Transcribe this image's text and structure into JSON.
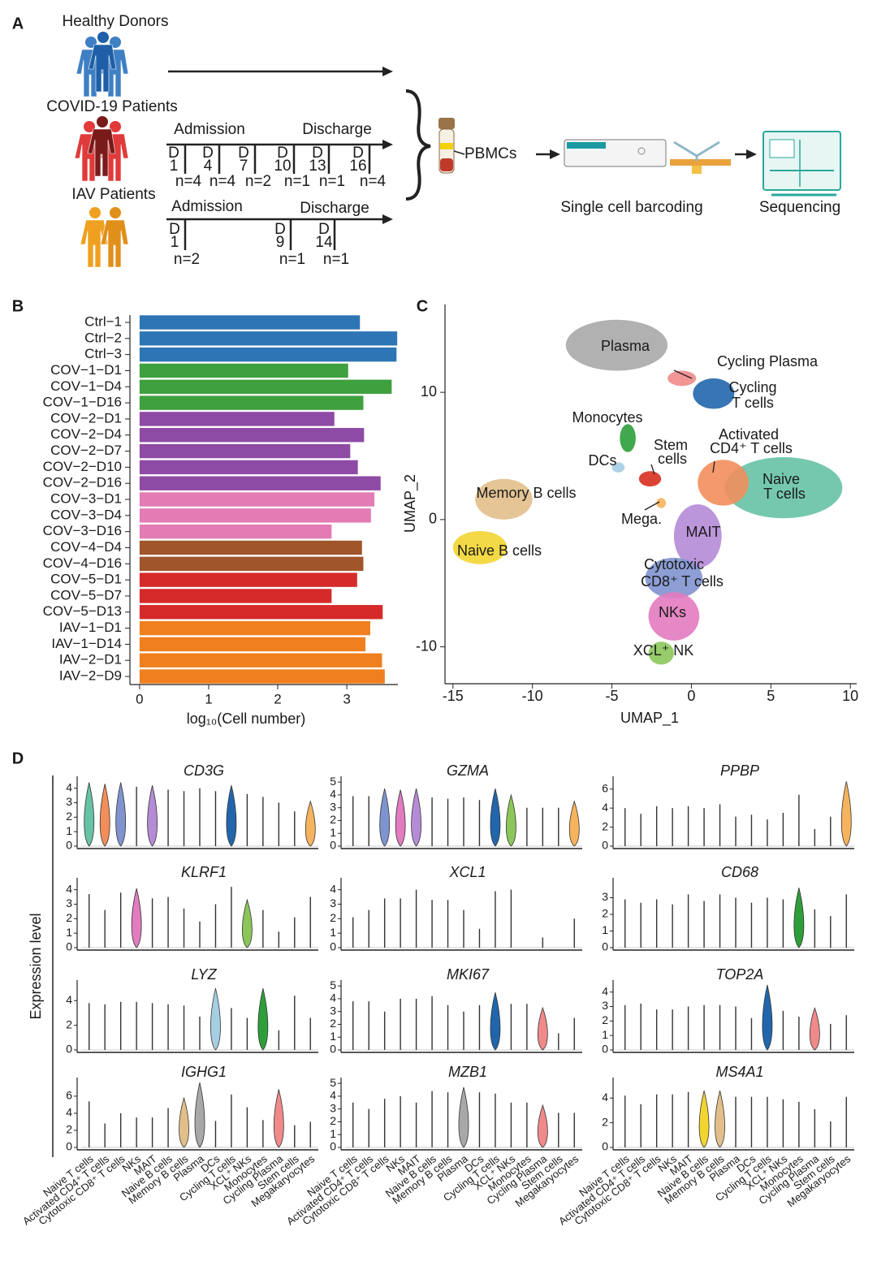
{
  "panel_labels": [
    "A",
    "B",
    "C",
    "D"
  ],
  "diagram": {
    "healthy": "Healthy Donors",
    "covid": "COVID-19 Patients",
    "iav": "IAV Patients",
    "admission": "Admission",
    "discharge": "Discharge",
    "day_prefix": "D",
    "covid_days": [
      {
        "day": 1,
        "n": "n=4"
      },
      {
        "day": 4,
        "n": "n=4"
      },
      {
        "day": 7,
        "n": "n=2"
      },
      {
        "day": 10,
        "n": "n=1"
      },
      {
        "day": 13,
        "n": "n=1"
      },
      {
        "day": 16,
        "n": "n=4"
      }
    ],
    "iav_days": [
      {
        "day": 1,
        "n": "n=2"
      },
      {
        "day": 9,
        "n": "n=1"
      },
      {
        "day": 14,
        "n": "n=1"
      }
    ],
    "pbmcs": "PBMCs",
    "barcoding": "Single cell barcoding",
    "sequencing": "Sequencing"
  },
  "chart_data": [
    {
      "type": "bar",
      "orientation": "horizontal",
      "categories": [
        "Ctrl−1",
        "Ctrl−2",
        "Ctrl−3",
        "COV−1−D1",
        "COV−1−D4",
        "COV−1−D16",
        "COV−2−D1",
        "COV−2−D4",
        "COV−2−D7",
        "COV−2−D10",
        "COV−2−D16",
        "COV−3−D1",
        "COV−3−D4",
        "COV−3−D16",
        "COV−4−D4",
        "COV−4−D16",
        "COV−5−D1",
        "COV−5−D7",
        "COV−5−D13",
        "IAV−1−D1",
        "IAV−1−D14",
        "IAV−2−D1",
        "IAV−2−D9"
      ],
      "values": [
        3.19,
        3.73,
        3.72,
        3.02,
        3.65,
        3.24,
        2.82,
        3.25,
        3.05,
        3.16,
        3.49,
        3.4,
        3.35,
        2.78,
        3.22,
        3.24,
        3.15,
        2.78,
        3.52,
        3.34,
        3.27,
        3.51,
        3.55
      ],
      "colors": [
        "#2e75b6",
        "#2e75b6",
        "#2e75b6",
        "#3ea03e",
        "#3ea03e",
        "#3ea03e",
        "#8e4ba5",
        "#8e4ba5",
        "#8e4ba5",
        "#8e4ba5",
        "#8e4ba5",
        "#e37cb4",
        "#e37cb4",
        "#e37cb4",
        "#a0552b",
        "#a0552b",
        "#d62a2a",
        "#d62a2a",
        "#d62a2a",
        "#f07f1e",
        "#f07f1e",
        "#f07f1e",
        "#f07f1e"
      ],
      "xlabel": "log₁₀(Cell number)",
      "xlim": [
        -0.14,
        3.74
      ],
      "xticks": [
        0,
        1,
        2,
        3
      ]
    },
    {
      "type": "scatter",
      "xlabel": "UMAP_1",
      "ylabel": "UMAP_2",
      "xlim": [
        -15.5,
        10.4
      ],
      "ylim": [
        -12.9,
        16.9
      ],
      "xticks": [
        -15,
        -10,
        -5,
        0,
        5,
        10
      ],
      "yticks": [
        -10,
        0,
        10
      ],
      "clusters": [
        {
          "label": [
            "Plasma"
          ],
          "color": "#a8a8a8",
          "x": -4.7,
          "y": 13.7,
          "rx": 3.2,
          "ry": 2.0
        },
        {
          "label": [
            "Cycling Plasma"
          ],
          "color": "#f08a8a",
          "x": -0.6,
          "y": 11.1,
          "rx": 0.9,
          "ry": 0.6
        },
        {
          "label": [
            "Cycling",
            "T cells"
          ],
          "color": "#2166ac",
          "x": 1.4,
          "y": 9.9,
          "rx": 1.3,
          "ry": 1.2
        },
        {
          "label": [
            "Monocytes"
          ],
          "color": "#2e9e3a",
          "x": -4.0,
          "y": 6.4,
          "rx": 0.5,
          "ry": 1.1
        },
        {
          "label": [
            "DCs"
          ],
          "color": "#a6cee3",
          "x": -4.6,
          "y": 4.1,
          "rx": 0.4,
          "ry": 0.4
        },
        {
          "label": [
            "Stem",
            "cells"
          ],
          "color": "#d7301f",
          "x": -2.6,
          "y": 3.2,
          "rx": 0.7,
          "ry": 0.6
        },
        {
          "label": [
            "Mega."
          ],
          "color": "#f6b35e",
          "x": -1.9,
          "y": 1.3,
          "rx": 0.3,
          "ry": 0.4
        },
        {
          "label": [
            "Memory B cells"
          ],
          "color": "#e2bf8a",
          "x": -11.8,
          "y": 1.6,
          "rx": 1.8,
          "ry": 1.6
        },
        {
          "label": [
            "Naive B cells"
          ],
          "color": "#f2d531",
          "x": -13.3,
          "y": -2.2,
          "rx": 1.7,
          "ry": 1.3
        },
        {
          "label": [
            "Naive",
            "T cells"
          ],
          "color": "#66c2a5",
          "x": 5.8,
          "y": 2.5,
          "rx": 3.7,
          "ry": 2.4
        },
        {
          "label": [
            "Activated",
            "CD4⁺ T cells"
          ],
          "color": "#f28e5c",
          "x": 2.0,
          "y": 2.9,
          "rx": 1.6,
          "ry": 1.8
        },
        {
          "label": [
            "MAIT"
          ],
          "color": "#b58bd6",
          "x": 0.4,
          "y": -1.3,
          "rx": 1.5,
          "ry": 2.5
        },
        {
          "label": [
            "Cytotoxic",
            "CD8⁺ T cells"
          ],
          "color": "#7f93cf",
          "x": -1.1,
          "y": -4.6,
          "rx": 1.8,
          "ry": 1.6
        },
        {
          "label": [
            "NKs"
          ],
          "color": "#e27bbf",
          "x": -1.1,
          "y": -7.6,
          "rx": 1.6,
          "ry": 1.9
        },
        {
          "label": [
            "XCL⁺ NK"
          ],
          "color": "#8cc65a",
          "x": -1.9,
          "y": -10.5,
          "rx": 0.8,
          "ry": 0.9
        }
      ]
    },
    {
      "type": "violin",
      "ylabel": "Expression level",
      "categories": [
        "Naive T cells",
        "Activated CD4⁺ T cells",
        "Cytotoxic CD8⁺ T cells",
        "NKs",
        "MAIT",
        "Naive B cells",
        "Memory B cells",
        "Plasma",
        "DCs",
        "Cycling T cells",
        "XCL⁺ NKs",
        "Monocytes",
        "Cycling Plasma",
        "Stem cells",
        "Megakaryocytes"
      ],
      "panels": [
        {
          "title": "CD3G",
          "ylim": [
            0,
            4.6
          ],
          "yticks": [
            0,
            1,
            2,
            3,
            4
          ],
          "values": [
            4.4,
            4.3,
            4.4,
            4.1,
            4.2,
            3.9,
            3.8,
            4.0,
            3.8,
            4.2,
            3.6,
            3.4,
            3.0,
            2.4,
            3.1
          ],
          "colors": [
            "#66c2a5",
            "#f28e5c",
            "#7f93cf",
            null,
            "#b58bd6",
            null,
            null,
            null,
            null,
            "#2166ac",
            null,
            null,
            null,
            null,
            "#f6b35e"
          ]
        },
        {
          "title": "GZMA",
          "ylim": [
            0,
            5.2
          ],
          "yticks": [
            0,
            1,
            2,
            3,
            4,
            5
          ],
          "values": [
            3.9,
            3.9,
            4.5,
            4.4,
            4.5,
            3.8,
            3.7,
            3.8,
            3.6,
            4.5,
            4.0,
            3.0,
            3.0,
            3.0,
            3.5
          ],
          "colors": [
            null,
            null,
            "#7f93cf",
            "#e27bbf",
            "#b58bd6",
            null,
            null,
            null,
            null,
            "#2166ac",
            "#8cc65a",
            null,
            null,
            null,
            "#f6b35e"
          ]
        },
        {
          "title": "PPBP",
          "ylim": [
            0,
            7
          ],
          "yticks": [
            0,
            2,
            4,
            6
          ],
          "values": [
            4.0,
            3.4,
            4.2,
            4.0,
            4.2,
            4.0,
            4.4,
            3.1,
            3.3,
            2.8,
            3.5,
            5.4,
            1.8,
            3.1,
            6.8
          ],
          "colors": [
            null,
            null,
            null,
            null,
            null,
            null,
            null,
            null,
            null,
            null,
            null,
            null,
            null,
            null,
            "#f6b35e"
          ]
        },
        {
          "title": "KLRF1",
          "ylim": [
            0,
            4.6
          ],
          "yticks": [
            0,
            1,
            2,
            3,
            4
          ],
          "values": [
            3.7,
            2.6,
            3.8,
            4.1,
            3.4,
            3.5,
            2.7,
            1.8,
            3.0,
            4.2,
            3.3,
            2.6,
            1.1,
            2.1,
            3.5
          ],
          "colors": [
            null,
            null,
            null,
            "#e27bbf",
            null,
            null,
            null,
            null,
            null,
            null,
            "#8cc65a",
            null,
            null,
            null,
            null
          ]
        },
        {
          "title": "XCL1",
          "ylim": [
            0,
            4.6
          ],
          "yticks": [
            0,
            1,
            2,
            3,
            4
          ],
          "values": [
            2.1,
            2.6,
            3.4,
            3.4,
            4.0,
            3.3,
            3.3,
            2.6,
            1.3,
            3.9,
            4.0,
            null,
            0.7,
            null,
            2.0
          ],
          "colors": [
            null,
            null,
            null,
            null,
            null,
            null,
            null,
            null,
            null,
            null,
            null,
            null,
            null,
            null,
            null
          ]
        },
        {
          "title": "CD68",
          "ylim": [
            0,
            4
          ],
          "yticks": [
            0,
            1,
            2,
            3
          ],
          "values": [
            2.9,
            2.7,
            2.9,
            2.6,
            3.2,
            2.8,
            3.2,
            3.0,
            2.7,
            3.0,
            2.9,
            3.6,
            2.3,
            1.9,
            3.2
          ],
          "colors": [
            null,
            null,
            null,
            null,
            null,
            null,
            null,
            null,
            null,
            null,
            null,
            "#2e9e3a",
            null,
            null,
            null
          ]
        },
        {
          "title": "LYZ",
          "ylim": [
            0,
            5.4
          ],
          "yticks": [
            0,
            2,
            4
          ],
          "values": [
            3.8,
            3.7,
            3.9,
            3.9,
            3.8,
            3.7,
            3.6,
            2.7,
            5.0,
            3.4,
            2.6,
            5.0,
            1.6,
            4.4,
            2.6
          ],
          "colors": [
            null,
            null,
            null,
            null,
            null,
            null,
            null,
            null,
            "#a6cee3",
            null,
            null,
            "#2e9e3a",
            null,
            null,
            null
          ]
        },
        {
          "title": "MKI67",
          "ylim": [
            0,
            5.2
          ],
          "yticks": [
            0,
            1,
            2,
            3,
            4,
            5
          ],
          "values": [
            3.8,
            3.8,
            3.0,
            4.0,
            4.0,
            4.2,
            3.5,
            3.0,
            3.5,
            4.5,
            3.6,
            3.6,
            3.3,
            1.3,
            2.5
          ],
          "colors": [
            null,
            null,
            null,
            null,
            null,
            null,
            null,
            null,
            null,
            "#2166ac",
            null,
            null,
            "#f08a8a",
            null,
            null
          ]
        },
        {
          "title": "TOP2A",
          "ylim": [
            0,
            4.6
          ],
          "yticks": [
            0,
            1,
            2,
            3,
            4
          ],
          "values": [
            3.1,
            3.2,
            2.8,
            2.8,
            3.0,
            3.1,
            3.1,
            3.0,
            2.2,
            4.5,
            2.7,
            2.3,
            2.9,
            1.8,
            2.4
          ],
          "colors": [
            null,
            null,
            null,
            null,
            null,
            null,
            null,
            null,
            null,
            "#2166ac",
            null,
            null,
            "#f08a8a",
            null,
            null
          ]
        },
        {
          "title": "IGHG1",
          "ylim": [
            0,
            7.8
          ],
          "yticks": [
            0,
            2,
            4,
            6
          ],
          "values": [
            5.4,
            2.8,
            4.0,
            3.5,
            3.5,
            4.6,
            5.8,
            7.6,
            3.1,
            6.2,
            4.7,
            3.2,
            6.8,
            2.6,
            3.0
          ],
          "colors": [
            null,
            null,
            null,
            null,
            null,
            null,
            "#e2bf8a",
            "#a8a8a8",
            null,
            null,
            null,
            null,
            "#f08a8a",
            null,
            null
          ]
        },
        {
          "title": "MZB1",
          "ylim": [
            0,
            5.2
          ],
          "yticks": [
            0,
            1,
            2,
            3,
            4,
            5
          ],
          "values": [
            3.5,
            3.0,
            3.8,
            4.0,
            3.5,
            4.4,
            4.3,
            4.7,
            4.3,
            4.2,
            3.5,
            3.5,
            3.3,
            2.7,
            2.7
          ],
          "colors": [
            null,
            null,
            null,
            null,
            null,
            null,
            null,
            "#a8a8a8",
            null,
            null,
            null,
            null,
            "#f08a8a",
            null,
            null
          ]
        },
        {
          "title": "MS4A1",
          "ylim": [
            0,
            5.4
          ],
          "yticks": [
            0,
            2,
            4
          ],
          "values": [
            4.2,
            3.5,
            4.3,
            4.3,
            4.5,
            4.6,
            4.6,
            4.1,
            4.1,
            4.1,
            3.9,
            3.7,
            3.1,
            2.1,
            4.1
          ],
          "colors": [
            null,
            null,
            null,
            null,
            null,
            "#f2d531",
            "#e2bf8a",
            null,
            null,
            null,
            null,
            null,
            null,
            null,
            null
          ]
        }
      ]
    }
  ]
}
